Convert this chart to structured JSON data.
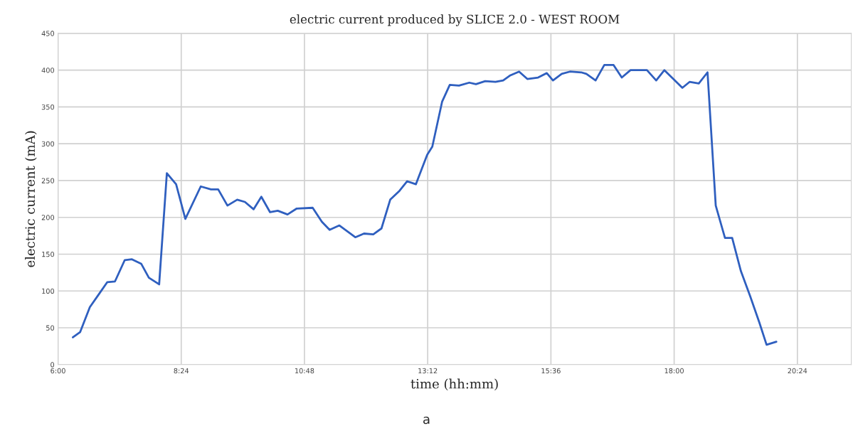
{
  "chart_data": {
    "type": "line",
    "title": "electric current produced by SLICE 2.0 - WEST ROOM",
    "xlabel": "time (hh:mm)",
    "ylabel": "electric current (mA)",
    "annotations": [
      "a"
    ],
    "x": [
      6.29,
      6.43,
      6.62,
      6.8,
      6.96,
      7.11,
      7.3,
      7.44,
      7.62,
      7.77,
      7.97,
      8.12,
      8.3,
      8.48,
      8.78,
      8.98,
      9.12,
      9.3,
      9.49,
      9.64,
      9.81,
      9.96,
      10.13,
      10.28,
      10.47,
      10.65,
      10.96,
      11.14,
      11.29,
      11.48,
      11.79,
      11.96,
      12.14,
      12.3,
      12.47,
      12.65,
      12.8,
      12.97,
      13.19,
      13.29,
      13.48,
      13.63,
      13.81,
      14.01,
      14.14,
      14.32,
      14.52,
      14.67,
      14.81,
      14.98,
      15.14,
      15.35,
      15.52,
      15.64,
      15.81,
      15.97,
      16.19,
      16.29,
      16.47,
      16.64,
      16.82,
      16.98,
      17.15,
      17.47,
      17.65,
      17.81,
      18.16,
      18.3,
      18.48,
      18.65,
      18.81,
      18.99,
      19.13,
      19.3,
      19.48,
      19.66,
      19.8,
      19.99
    ],
    "series": [
      {
        "color": "#2f5fbf",
        "values": [
          37,
          44,
          78,
          96,
          112,
          113,
          142,
          143,
          137,
          118,
          109,
          260,
          245,
          198,
          242,
          238,
          238,
          216,
          224,
          221,
          211,
          228,
          207,
          209,
          204,
          212,
          213,
          194,
          183,
          189,
          173,
          178,
          177,
          185,
          224,
          236,
          249,
          245,
          285,
          296,
          357,
          380,
          379,
          383,
          381,
          385,
          384,
          386,
          393,
          398,
          388,
          390,
          396,
          386,
          395,
          398,
          397,
          395,
          386,
          407,
          407,
          390,
          400,
          400,
          386,
          400,
          376,
          384,
          382,
          397,
          216,
          172,
          172,
          127,
          93,
          57,
          27,
          31
        ]
      }
    ],
    "xlim": [
      6,
      21.45
    ],
    "xticks": [
      {
        "value": 6,
        "label": "6:00"
      },
      {
        "value": 8.4,
        "label": "8:24"
      },
      {
        "value": 10.8,
        "label": "10:48"
      },
      {
        "value": 13.2,
        "label": "13:12"
      },
      {
        "value": 15.6,
        "label": "15:36"
      },
      {
        "value": 18,
        "label": "18:00"
      },
      {
        "value": 20.4,
        "label": "20:24"
      }
    ],
    "ylim": [
      0,
      450
    ],
    "yticks": [
      0,
      50,
      100,
      150,
      200,
      250,
      300,
      350,
      400,
      450
    ],
    "grid": true,
    "marker": "none",
    "line_style": "solid"
  }
}
